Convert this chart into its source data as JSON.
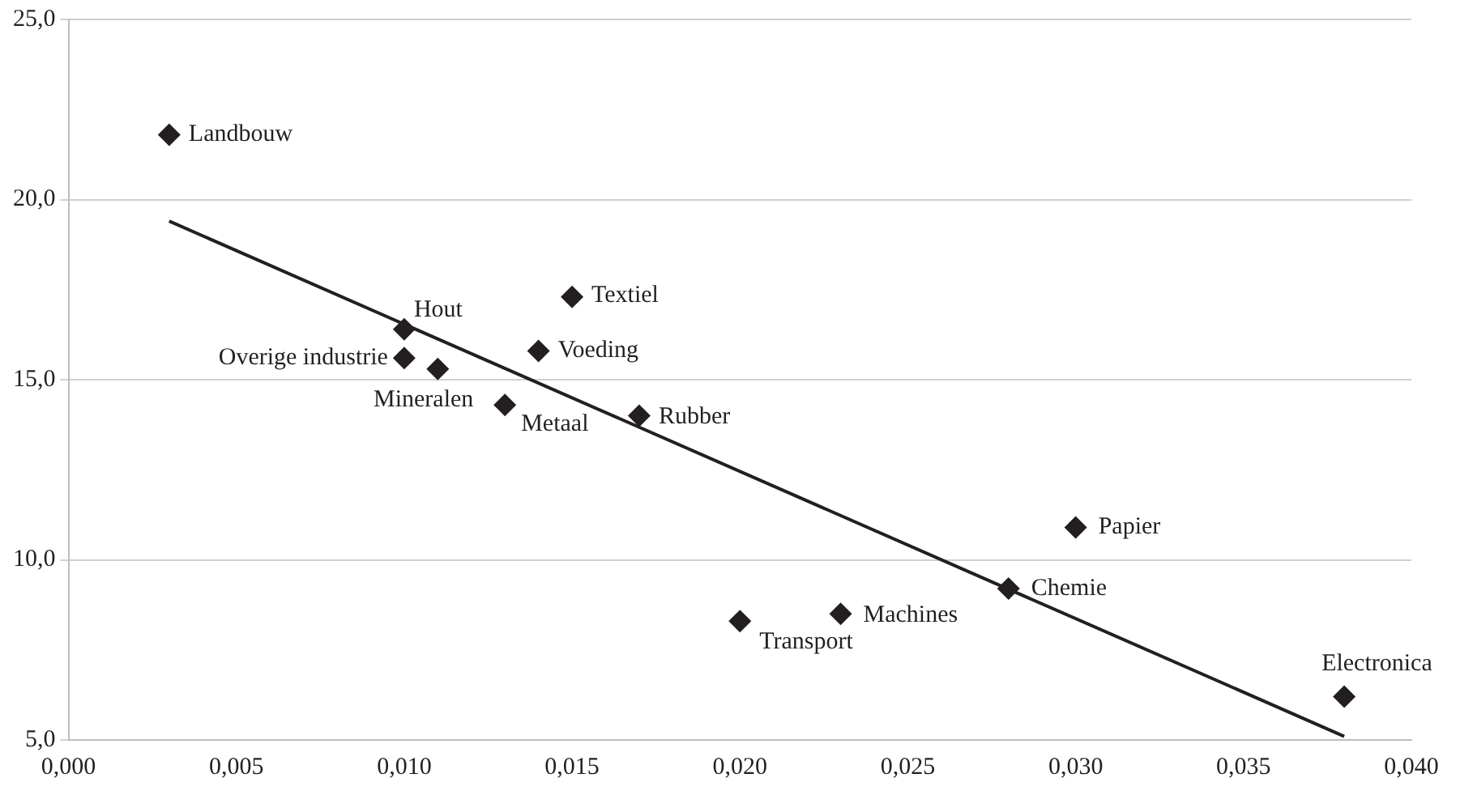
{
  "chart_data": {
    "type": "scatter",
    "xlim": [
      0,
      0.04
    ],
    "ylim": [
      5,
      25
    ],
    "xticks": [
      {
        "value": 0,
        "label": "0,000"
      },
      {
        "value": 0.005,
        "label": "0,005"
      },
      {
        "value": 0.01,
        "label": "0,010"
      },
      {
        "value": 0.015,
        "label": "0,015"
      },
      {
        "value": 0.02,
        "label": "0,020"
      },
      {
        "value": 0.025,
        "label": "0,025"
      },
      {
        "value": 0.03,
        "label": "0,030"
      },
      {
        "value": 0.035,
        "label": "0,035"
      },
      {
        "value": 0.04,
        "label": "0,040"
      }
    ],
    "yticks": [
      {
        "value": 5,
        "label": "5,0"
      },
      {
        "value": 10,
        "label": "10,0"
      },
      {
        "value": 15,
        "label": "15,0"
      },
      {
        "value": 20,
        "label": "20,0"
      },
      {
        "value": 25,
        "label": "25,0"
      }
    ],
    "grid": "y",
    "legend": false,
    "marker": "diamond",
    "series": [
      {
        "color": "#231f20",
        "x": [
          0.003,
          0.01,
          0.01,
          0.011,
          0.013,
          0.014,
          0.015,
          0.017,
          0.02,
          0.023,
          0.028,
          0.03,
          0.038
        ],
        "values": [
          21.8,
          16.4,
          15.6,
          15.3,
          14.3,
          15.8,
          17.3,
          14.0,
          8.3,
          8.5,
          9.2,
          10.9,
          6.2
        ]
      },
      {
        "type": "line",
        "color": "#231f20",
        "marker": "none",
        "x": [
          0.003,
          0.038
        ],
        "values": [
          19.4,
          5.1
        ]
      }
    ],
    "annotations": [
      {
        "text": "Landbouw",
        "x": 0.003,
        "y": 21.8
      },
      {
        "text": "Hout",
        "x": 0.01,
        "y": 16.4
      },
      {
        "text": "Overige industrie",
        "x": 0.01,
        "y": 15.6
      },
      {
        "text": "Mineralen",
        "x": 0.011,
        "y": 15.3
      },
      {
        "text": "Metaal",
        "x": 0.013,
        "y": 14.3
      },
      {
        "text": "Voeding",
        "x": 0.014,
        "y": 15.8
      },
      {
        "text": "Textiel",
        "x": 0.015,
        "y": 17.3
      },
      {
        "text": "Rubber",
        "x": 0.017,
        "y": 14.0
      },
      {
        "text": "Transport",
        "x": 0.02,
        "y": 8.3
      },
      {
        "text": "Machines",
        "x": 0.023,
        "y": 8.5
      },
      {
        "text": "Chemie",
        "x": 0.028,
        "y": 9.2
      },
      {
        "text": "Papier",
        "x": 0.03,
        "y": 10.9
      },
      {
        "text": "Electronica",
        "x": 0.038,
        "y": 6.2
      }
    ]
  }
}
